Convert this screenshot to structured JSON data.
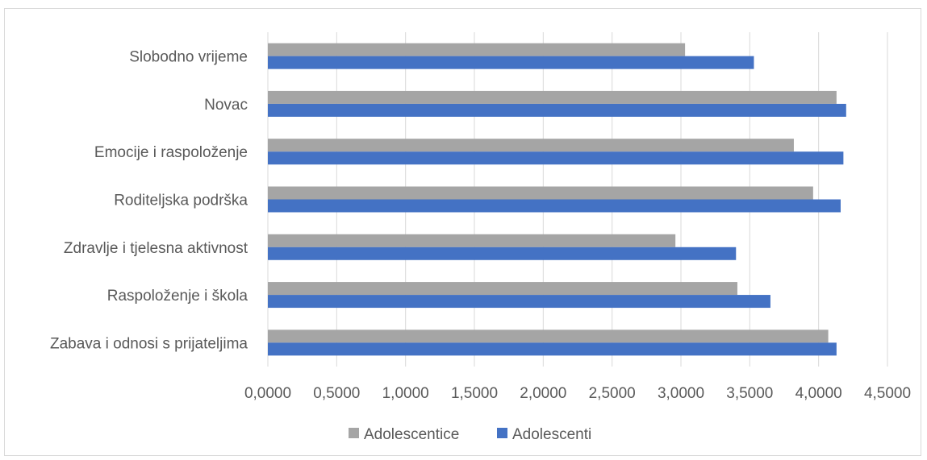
{
  "chart_data": {
    "type": "bar",
    "orientation": "horizontal",
    "categories": [
      "Zabava i odnosi s prijateljima",
      "Raspoloženje i škola",
      "Zdravlje i tjelesna aktivnost",
      "Roditeljska podrška",
      "Emocije i raspoloženje",
      "Novac",
      "Slobodno vrijeme"
    ],
    "series": [
      {
        "name": "Adolescentice",
        "color": "#a5a5a5",
        "values": [
          4.07,
          3.41,
          2.96,
          3.96,
          3.82,
          4.13,
          3.03
        ]
      },
      {
        "name": "Adolescenti",
        "color": "#4472c4",
        "values": [
          4.13,
          3.65,
          3.4,
          4.16,
          4.18,
          4.2,
          3.53
        ]
      }
    ],
    "xlim": [
      0,
      4.5
    ],
    "ticks": [
      "0,0000",
      "0,5000",
      "1,0000",
      "1,5000",
      "2,0000",
      "2,5000",
      "3,0000",
      "3,5000",
      "4,0000",
      "4,5000"
    ],
    "tick_values": [
      0,
      0.5,
      1.0,
      1.5,
      2.0,
      2.5,
      3.0,
      3.5,
      4.0,
      4.5
    ],
    "grid": true,
    "legend_position": "bottom",
    "title": "",
    "xlabel": "",
    "ylabel": ""
  }
}
